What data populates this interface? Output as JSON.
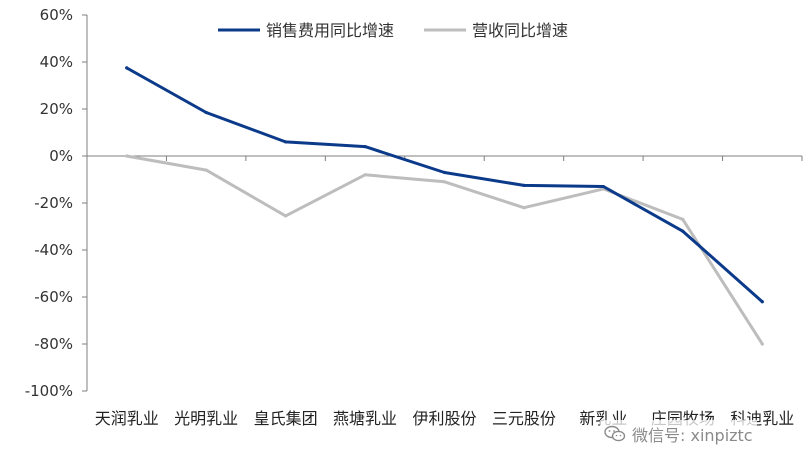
{
  "chart_data": {
    "type": "line",
    "categories": [
      "天润乳业",
      "光明乳业",
      "皇氏集团",
      "燕塘乳业",
      "伊利股份",
      "三元股份",
      "新乳业",
      "庄园牧场",
      "科迪乳业"
    ],
    "series": [
      {
        "name": "销售费用同比增速",
        "color": "#0b3a8a",
        "values": [
          37.5,
          18.5,
          6,
          4,
          -7,
          -12.5,
          -13,
          -32,
          -62
        ]
      },
      {
        "name": "营收同比增速",
        "color": "#bdbdbd",
        "values": [
          0,
          -6,
          -25.5,
          -8,
          -11,
          -22,
          -14,
          -27,
          -80
        ]
      }
    ],
    "ylim": [
      -100,
      60
    ],
    "yticks": [
      60,
      40,
      20,
      0,
      -20,
      -40,
      -60,
      -80,
      -100
    ],
    "ytick_labels": [
      "60%",
      "40%",
      "20%",
      "0%",
      "-20%",
      "-40%",
      "-60%",
      "-80%",
      "-100%"
    ],
    "legend_position": "top-center",
    "grid": false
  },
  "watermark": {
    "text": "微信号: xinpiztc",
    "icon": "wechat-icon"
  }
}
